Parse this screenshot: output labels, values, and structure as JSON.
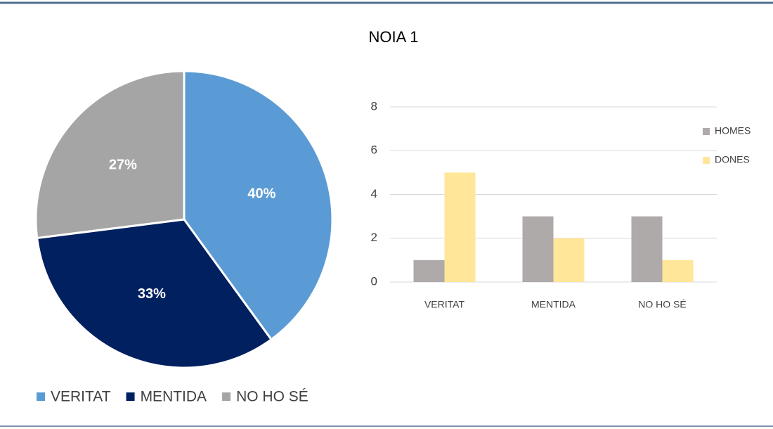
{
  "title": "NOIA 1",
  "chart_data": [
    {
      "type": "pie",
      "categories": [
        "VERITAT",
        "MENTIDA",
        "NO HO SÉ"
      ],
      "values": [
        40,
        33,
        27
      ],
      "value_labels": [
        "40%",
        "33%",
        "27%"
      ],
      "colors": [
        "#5b9bd5",
        "#002060",
        "#a5a5a5"
      ],
      "legend": "bottom"
    },
    {
      "type": "bar",
      "categories": [
        "VERITAT",
        "MENTIDA",
        "NO HO SÉ"
      ],
      "series": [
        {
          "name": "HOMES",
          "color": "#aeaaaa",
          "values": [
            1,
            3,
            3
          ]
        },
        {
          "name": "DONES",
          "color": "#ffe699",
          "values": [
            5,
            2,
            1
          ]
        }
      ],
      "ylim": [
        0,
        8
      ],
      "yticks": [
        0,
        2,
        4,
        6,
        8
      ],
      "grid": true,
      "legend": "right"
    }
  ]
}
